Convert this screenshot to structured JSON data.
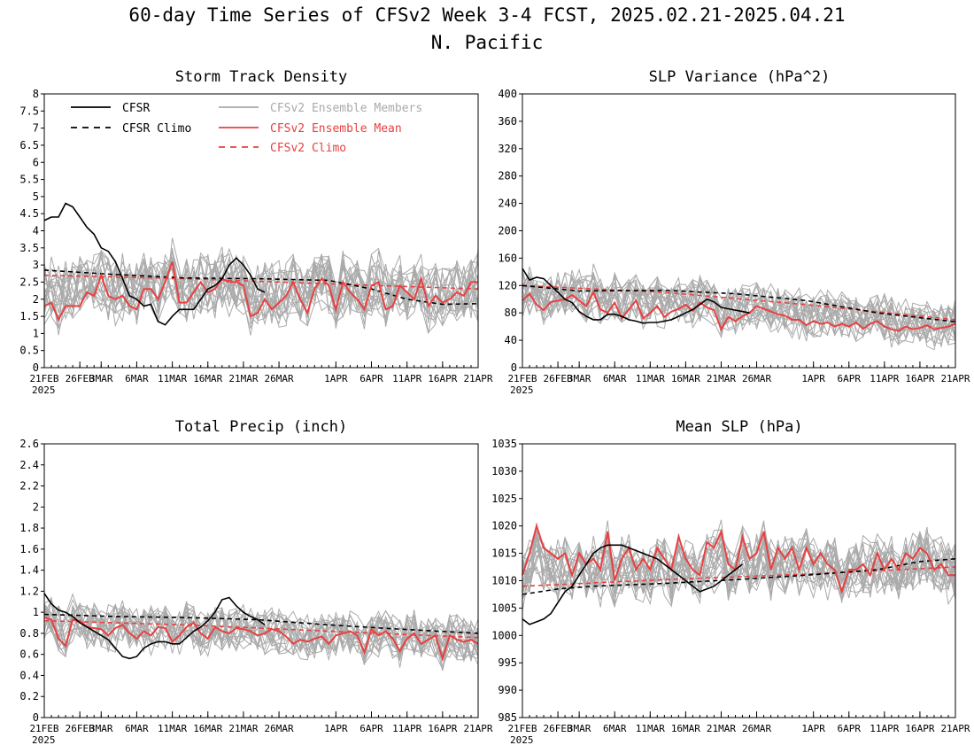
{
  "figure": {
    "title": "60-day Time Series of CFSv2 Week 3-4 FCST, 2025.02.21-2025.04.21",
    "subtitle": "N. Pacific"
  },
  "legend": {
    "items": [
      {
        "label": "CFSR",
        "color": "#000000",
        "dashed": false
      },
      {
        "label": "CFSR Climo",
        "color": "#000000",
        "dashed": true
      },
      {
        "label": "CFSv2 Ensemble Members",
        "color": "#aaaaaa",
        "dashed": false
      },
      {
        "label": "CFSv2 Ensemble Mean",
        "color": "#e84040",
        "dashed": false
      },
      {
        "label": "CFSv2 Climo",
        "color": "#e84040",
        "dashed": true
      }
    ]
  },
  "x_axis": {
    "ticks": [
      {
        "day": 0,
        "label": "21FEB"
      },
      {
        "day": 5,
        "label": "26FEB"
      },
      {
        "day": 8,
        "label": "3MAR"
      },
      {
        "day": 13,
        "label": "6MAR"
      },
      {
        "day": 18,
        "label": "11MAR"
      },
      {
        "day": 23,
        "label": "16MAR"
      },
      {
        "day": 28,
        "label": "21MAR"
      },
      {
        "day": 33,
        "label": "26MAR"
      },
      {
        "day": 41,
        "label": "1APR"
      },
      {
        "day": 46,
        "label": "6APR"
      },
      {
        "day": 51,
        "label": "11APR"
      },
      {
        "day": 56,
        "label": "16APR"
      },
      {
        "day": 61,
        "label": "21APR"
      }
    ],
    "year_label": "2025"
  },
  "colors": {
    "cfsr": "#000000",
    "members": "#aaaaaa",
    "mean": "#e84040"
  },
  "chart_data": [
    {
      "type": "line",
      "title": "Storm Track Density",
      "xlim": [
        0,
        61
      ],
      "ylim": [
        0,
        8
      ],
      "yticks": [
        "0",
        "0.5",
        "1",
        "1.5",
        "2",
        "2.5",
        "3",
        "3.5",
        "4",
        "4.5",
        "5",
        "5.5",
        "6",
        "6.5",
        "7",
        "7.5",
        "8"
      ],
      "show_legend": true,
      "member_count": 20,
      "member_spread": 0.7,
      "series": [
        {
          "name": "CFSR",
          "role": "cfsr",
          "x": [
            0,
            1,
            2,
            3,
            4,
            5,
            6,
            7,
            8,
            9,
            10,
            11,
            12,
            13,
            14,
            15,
            16,
            17,
            18,
            19,
            20,
            21,
            22,
            23,
            24,
            25,
            26,
            27,
            28,
            29,
            30,
            31
          ],
          "y": [
            4.3,
            4.4,
            4.4,
            4.8,
            4.7,
            4.4,
            4.1,
            3.9,
            3.5,
            3.4,
            3.1,
            2.6,
            2.1,
            2.0,
            1.8,
            1.85,
            1.35,
            1.25,
            1.5,
            1.7,
            1.7,
            1.7,
            2.0,
            2.3,
            2.4,
            2.6,
            3.0,
            3.2,
            3.0,
            2.7,
            2.3,
            2.2
          ]
        },
        {
          "name": "CFSR Climo",
          "role": "cfsr_climo",
          "x": [
            0,
            10,
            20,
            30,
            40,
            46,
            51,
            56,
            61
          ],
          "y": [
            2.85,
            2.72,
            2.62,
            2.6,
            2.55,
            2.3,
            2.0,
            1.85,
            1.87
          ]
        },
        {
          "name": "CFSv2 Ensemble Mean",
          "role": "mean",
          "x": [
            0,
            1,
            2,
            3,
            4,
            5,
            6,
            7,
            8,
            9,
            10,
            11,
            12,
            13,
            14,
            15,
            16,
            17,
            18,
            19,
            20,
            21,
            22,
            23,
            24,
            25,
            26,
            27,
            28,
            29,
            30,
            31,
            32,
            33,
            34,
            35,
            36,
            37,
            38,
            39,
            40,
            41,
            42,
            43,
            44,
            45,
            46,
            47,
            48,
            49,
            50,
            51,
            52,
            53,
            54,
            55,
            56,
            57,
            58,
            59,
            60,
            61
          ],
          "y": [
            1.8,
            1.9,
            1.4,
            1.8,
            1.8,
            1.8,
            2.2,
            2.1,
            2.7,
            2.1,
            2.0,
            2.1,
            1.8,
            1.7,
            2.3,
            2.3,
            2.0,
            2.5,
            3.1,
            1.9,
            1.9,
            2.2,
            2.5,
            2.2,
            2.3,
            2.6,
            2.5,
            2.5,
            2.4,
            1.5,
            1.6,
            2.0,
            1.7,
            1.9,
            2.1,
            2.5,
            2.0,
            1.6,
            2.3,
            2.6,
            2.4,
            1.7,
            2.5,
            2.2,
            2.0,
            1.7,
            2.4,
            2.5,
            1.7,
            1.8,
            2.4,
            2.2,
            2.0,
            2.6,
            1.8,
            2.1,
            1.9,
            2.0,
            2.2,
            2.1,
            2.5,
            2.5
          ]
        },
        {
          "name": "CFSv2 Climo",
          "role": "mean_climo",
          "x": [
            0,
            20,
            40,
            61
          ],
          "y": [
            2.7,
            2.6,
            2.45,
            2.3
          ]
        }
      ]
    },
    {
      "type": "line",
      "title": "SLP Variance (hPa^2)",
      "xlim": [
        0,
        61
      ],
      "ylim": [
        0,
        400
      ],
      "yticks": [
        "0",
        "40",
        "80",
        "120",
        "160",
        "200",
        "240",
        "280",
        "320",
        "360",
        "400"
      ],
      "show_legend": false,
      "member_count": 20,
      "member_spread": 25,
      "series": [
        {
          "name": "CFSR",
          "role": "cfsr",
          "x": [
            0,
            1,
            2,
            3,
            4,
            5,
            6,
            7,
            8,
            9,
            10,
            11,
            12,
            13,
            14,
            15,
            16,
            17,
            18,
            19,
            20,
            21,
            22,
            23,
            24,
            25,
            26,
            27,
            28,
            29,
            30,
            31,
            32
          ],
          "y": [
            145,
            128,
            132,
            130,
            120,
            110,
            100,
            95,
            82,
            75,
            70,
            70,
            78,
            78,
            75,
            70,
            68,
            65,
            66,
            66,
            68,
            70,
            75,
            80,
            85,
            92,
            100,
            96,
            88,
            86,
            84,
            82,
            80
          ]
        },
        {
          "name": "CFSR Climo",
          "role": "cfsr_climo",
          "x": [
            0,
            8,
            20,
            30,
            40,
            50,
            61
          ],
          "y": [
            120,
            112,
            113,
            108,
            98,
            80,
            67
          ]
        },
        {
          "name": "CFSv2 Ensemble Mean",
          "role": "mean",
          "x": [
            0,
            1,
            2,
            3,
            4,
            5,
            6,
            7,
            8,
            9,
            10,
            11,
            12,
            13,
            14,
            15,
            16,
            17,
            18,
            19,
            20,
            21,
            22,
            23,
            24,
            25,
            26,
            27,
            28,
            29,
            30,
            31,
            32,
            33,
            34,
            35,
            36,
            37,
            38,
            39,
            40,
            41,
            42,
            43,
            44,
            45,
            46,
            47,
            48,
            49,
            50,
            51,
            52,
            53,
            54,
            55,
            56,
            57,
            58,
            59,
            60,
            61
          ],
          "y": [
            98,
            108,
            92,
            84,
            96,
            98,
            100,
            106,
            98,
            90,
            110,
            85,
            80,
            95,
            72,
            85,
            98,
            72,
            80,
            90,
            74,
            82,
            86,
            92,
            83,
            95,
            88,
            84,
            56,
            74,
            68,
            75,
            80,
            90,
            86,
            82,
            78,
            76,
            70,
            70,
            62,
            68,
            64,
            66,
            60,
            64,
            60,
            66,
            57,
            64,
            68,
            60,
            56,
            54,
            60,
            56,
            58,
            62,
            56,
            58,
            60,
            64
          ]
        },
        {
          "name": "CFSv2 Climo",
          "role": "mean_climo",
          "x": [
            0,
            20,
            40,
            61
          ],
          "y": [
            120,
            110,
            92,
            70
          ]
        }
      ]
    },
    {
      "type": "line",
      "title": "Total Precip (inch)",
      "xlim": [
        0,
        61
      ],
      "ylim": [
        0,
        2.6
      ],
      "yticks": [
        "0",
        "0.2",
        "0.4",
        "0.6",
        "0.8",
        "1",
        "1.2",
        "1.4",
        "1.6",
        "1.8",
        "2",
        "2.2",
        "2.4",
        "2.6"
      ],
      "show_legend": false,
      "member_count": 20,
      "member_spread": 0.16,
      "series": [
        {
          "name": "CFSR",
          "role": "cfsr",
          "x": [
            0,
            1,
            2,
            3,
            4,
            5,
            6,
            7,
            8,
            9,
            10,
            11,
            12,
            13,
            14,
            15,
            16,
            17,
            18,
            19,
            20,
            21,
            22,
            23,
            24,
            25,
            26,
            27,
            28,
            29,
            30,
            31
          ],
          "y": [
            1.18,
            1.08,
            1.02,
            1.0,
            0.96,
            0.9,
            0.86,
            0.82,
            0.78,
            0.74,
            0.66,
            0.58,
            0.56,
            0.58,
            0.66,
            0.7,
            0.72,
            0.72,
            0.7,
            0.7,
            0.76,
            0.82,
            0.86,
            0.92,
            1.0,
            1.12,
            1.14,
            1.06,
            1.0,
            0.96,
            0.93,
            0.88
          ]
        },
        {
          "name": "CFSR Climo",
          "role": "cfsr_climo",
          "x": [
            0,
            10,
            20,
            30,
            40,
            50,
            61
          ],
          "y": [
            0.98,
            0.96,
            0.95,
            0.93,
            0.88,
            0.84,
            0.8
          ]
        },
        {
          "name": "CFSv2 Ensemble Mean",
          "role": "mean",
          "x": [
            0,
            1,
            2,
            3,
            4,
            5,
            6,
            7,
            8,
            9,
            10,
            11,
            12,
            13,
            14,
            15,
            16,
            17,
            18,
            19,
            20,
            21,
            22,
            23,
            24,
            25,
            26,
            27,
            28,
            29,
            30,
            31,
            32,
            33,
            34,
            35,
            36,
            37,
            38,
            39,
            40,
            41,
            42,
            43,
            44,
            45,
            46,
            47,
            48,
            49,
            50,
            51,
            52,
            53,
            54,
            55,
            56,
            57,
            58,
            59,
            60,
            61
          ],
          "y": [
            0.95,
            0.93,
            0.75,
            0.68,
            0.93,
            0.92,
            0.86,
            0.85,
            0.84,
            0.78,
            0.85,
            0.88,
            0.8,
            0.75,
            0.82,
            0.78,
            0.86,
            0.85,
            0.72,
            0.78,
            0.86,
            0.9,
            0.8,
            0.75,
            0.86,
            0.82,
            0.8,
            0.85,
            0.84,
            0.82,
            0.78,
            0.8,
            0.84,
            0.82,
            0.77,
            0.7,
            0.74,
            0.72,
            0.75,
            0.77,
            0.7,
            0.78,
            0.8,
            0.82,
            0.78,
            0.62,
            0.84,
            0.78,
            0.82,
            0.75,
            0.63,
            0.75,
            0.8,
            0.7,
            0.74,
            0.78,
            0.56,
            0.78,
            0.74,
            0.72,
            0.74,
            0.7
          ]
        },
        {
          "name": "CFSv2 Climo",
          "role": "mean_climo",
          "x": [
            0,
            20,
            40,
            61
          ],
          "y": [
            0.92,
            0.88,
            0.82,
            0.76
          ]
        }
      ]
    },
    {
      "type": "line",
      "title": "Mean SLP (hPa)",
      "xlim": [
        0,
        61
      ],
      "ylim": [
        985,
        1035
      ],
      "yticks": [
        "985",
        "990",
        "995",
        "1000",
        "1005",
        "1010",
        "1015",
        "1020",
        "1025",
        "1030",
        "1035"
      ],
      "show_legend": false,
      "member_count": 20,
      "member_spread": 4,
      "series": [
        {
          "name": "CFSR",
          "role": "cfsr",
          "x": [
            0,
            1,
            2,
            3,
            4,
            5,
            6,
            7,
            8,
            9,
            10,
            11,
            12,
            13,
            14,
            15,
            16,
            17,
            18,
            19,
            20,
            21,
            22,
            23,
            24,
            25,
            26,
            27,
            28,
            29,
            30,
            31
          ],
          "y": [
            1003,
            1002,
            1002.5,
            1003,
            1004,
            1006,
            1008,
            1009,
            1011,
            1013,
            1015,
            1016,
            1016.5,
            1016.5,
            1016.5,
            1016,
            1015.5,
            1015,
            1014.5,
            1014,
            1013,
            1012,
            1011,
            1010,
            1009,
            1008,
            1008.5,
            1009,
            1010,
            1011,
            1012,
            1013
          ]
        },
        {
          "name": "CFSR Climo",
          "role": "cfsr_climo",
          "x": [
            0,
            5,
            10,
            20,
            30,
            40,
            50,
            56,
            61
          ],
          "y": [
            1007.5,
            1008.5,
            1009,
            1009.5,
            1010.2,
            1011,
            1012,
            1013.5,
            1014
          ]
        },
        {
          "name": "CFSv2 Ensemble Mean",
          "role": "mean",
          "x": [
            0,
            1,
            2,
            3,
            4,
            5,
            6,
            7,
            8,
            9,
            10,
            11,
            12,
            13,
            14,
            15,
            16,
            17,
            18,
            19,
            20,
            21,
            22,
            23,
            24,
            25,
            26,
            27,
            28,
            29,
            30,
            31,
            32,
            33,
            34,
            35,
            36,
            37,
            38,
            39,
            40,
            41,
            42,
            43,
            44,
            45,
            46,
            47,
            48,
            49,
            50,
            51,
            52,
            53,
            54,
            55,
            56,
            57,
            58,
            59,
            60,
            61
          ],
          "y": [
            1011,
            1015,
            1020,
            1016,
            1015,
            1014,
            1015,
            1011,
            1015,
            1013,
            1014,
            1012,
            1019,
            1010,
            1014,
            1016,
            1012,
            1014,
            1012,
            1016,
            1014,
            1012,
            1018,
            1014,
            1012,
            1011,
            1017,
            1016,
            1019,
            1013,
            1012,
            1018,
            1014,
            1015,
            1019,
            1012,
            1016,
            1014,
            1016,
            1012,
            1016,
            1013,
            1015,
            1013,
            1012,
            1008,
            1012,
            1012,
            1013,
            1011,
            1015,
            1012,
            1014,
            1012,
            1015,
            1014,
            1016,
            1015,
            1012,
            1013,
            1011,
            1011
          ]
        },
        {
          "name": "CFSv2 Climo",
          "role": "mean_climo",
          "x": [
            0,
            20,
            40,
            61
          ],
          "y": [
            1009,
            1010.2,
            1011.2,
            1012.5
          ]
        }
      ]
    }
  ]
}
